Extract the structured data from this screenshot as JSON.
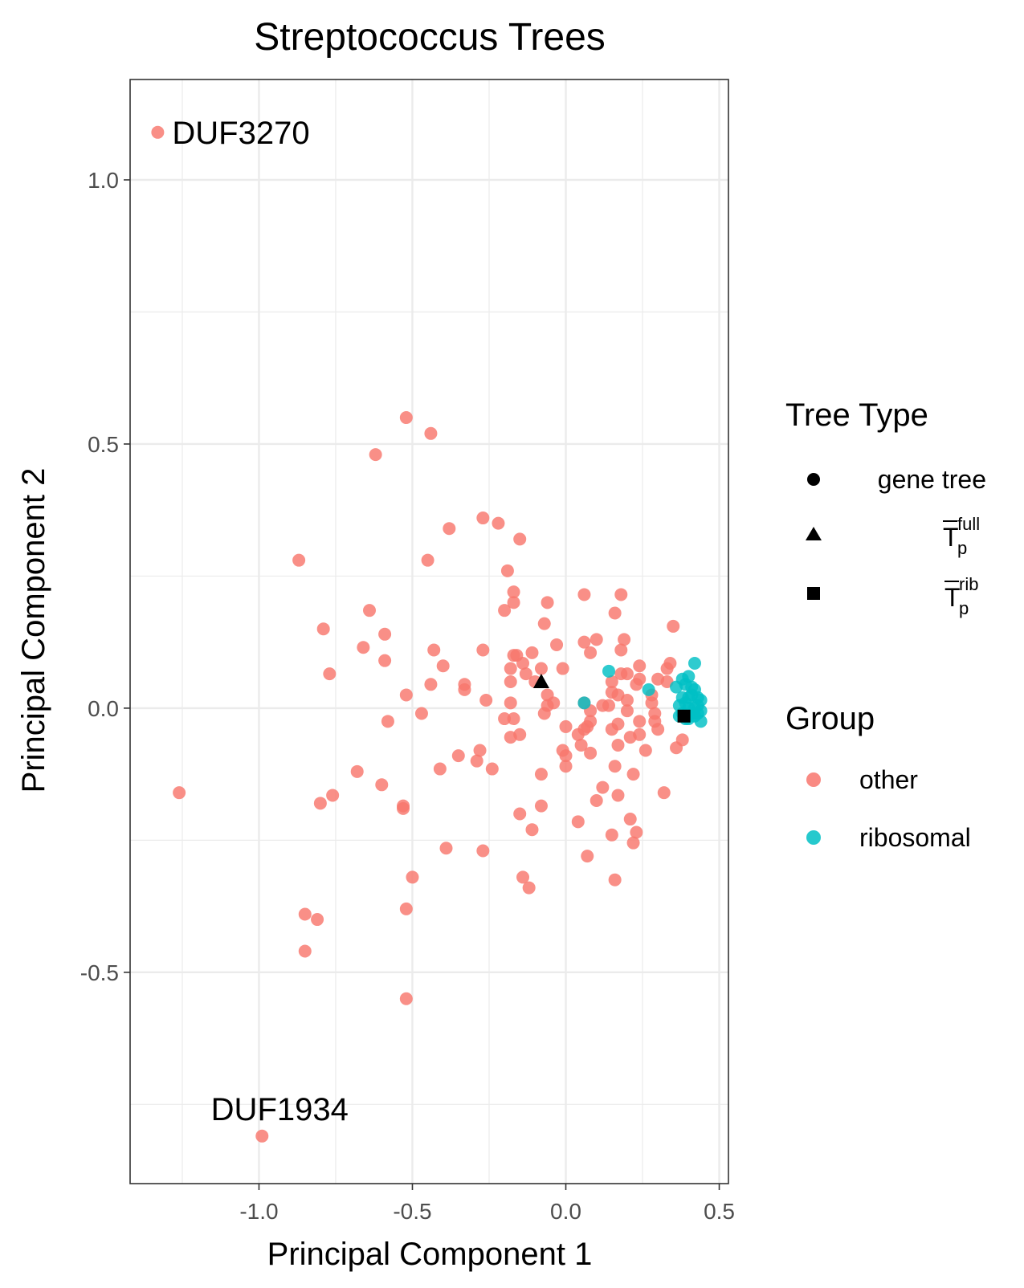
{
  "chart_data": {
    "type": "scatter",
    "title": "Streptococcus Trees",
    "xlabel": "Principal Component 1",
    "ylabel": "Principal Component 2",
    "xlim": [
      -1.42,
      0.53
    ],
    "ylim": [
      -0.9,
      1.19
    ],
    "x_ticks": [
      -1.0,
      -0.5,
      0.0,
      0.5
    ],
    "x_tick_labels": [
      "-1.0",
      "-0.5",
      "0.0",
      "0.5"
    ],
    "y_ticks": [
      -0.5,
      0.0,
      0.5,
      1.0
    ],
    "y_tick_labels": [
      "-0.5",
      "0.0",
      "0.5",
      "1.0"
    ],
    "grid": true,
    "legend_position": "right",
    "colors": {
      "other": "#F8766D",
      "ribosomal": "#00BFC4",
      "marker": "#000000"
    },
    "legend": {
      "tree_type": {
        "title": "Tree Type",
        "items": [
          {
            "shape": "circle",
            "label": "gene tree"
          },
          {
            "shape": "triangle",
            "label_main": "T",
            "label_sup": "full",
            "label_sub": "p"
          },
          {
            "shape": "square",
            "label_main": "T",
            "label_sup": "rib",
            "label_sub": "p"
          }
        ]
      },
      "group": {
        "title": "Group",
        "items": [
          {
            "label": "other",
            "color": "#F8766D"
          },
          {
            "label": "ribosomal",
            "color": "#00BFC4"
          }
        ]
      }
    },
    "annotations": [
      {
        "text": "DUF3270",
        "x": -1.33,
        "y": 1.09
      },
      {
        "text": "DUF1934",
        "x": -0.99,
        "y": -0.81
      }
    ],
    "special_points": [
      {
        "label": "T̄p full",
        "shape": "triangle",
        "x": -0.08,
        "y": 0.05
      },
      {
        "label": "T̄p rib",
        "shape": "square",
        "x": 0.385,
        "y": -0.015
      }
    ],
    "series": [
      {
        "name": "other",
        "points": [
          [
            -1.33,
            1.09
          ],
          [
            -0.99,
            -0.81
          ],
          [
            -1.26,
            -0.16
          ],
          [
            -0.52,
            0.55
          ],
          [
            -0.44,
            0.52
          ],
          [
            -0.62,
            0.48
          ],
          [
            -0.27,
            0.36
          ],
          [
            -0.22,
            0.35
          ],
          [
            -0.38,
            0.34
          ],
          [
            -0.15,
            0.32
          ],
          [
            -0.87,
            0.28
          ],
          [
            -0.45,
            0.28
          ],
          [
            -0.19,
            0.26
          ],
          [
            -0.17,
            0.22
          ],
          [
            -0.17,
            0.2
          ],
          [
            -0.06,
            0.2
          ],
          [
            0.06,
            0.215
          ],
          [
            0.18,
            0.215
          ],
          [
            -0.64,
            0.185
          ],
          [
            -0.2,
            0.185
          ],
          [
            -0.07,
            0.16
          ],
          [
            0.16,
            0.18
          ],
          [
            -0.79,
            0.15
          ],
          [
            -0.59,
            0.14
          ],
          [
            0.35,
            0.155
          ],
          [
            -0.66,
            0.115
          ],
          [
            -0.43,
            0.11
          ],
          [
            -0.27,
            0.11
          ],
          [
            -0.03,
            0.12
          ],
          [
            0.06,
            0.125
          ],
          [
            0.1,
            0.13
          ],
          [
            0.19,
            0.13
          ],
          [
            -0.17,
            0.1
          ],
          [
            -0.11,
            0.105
          ],
          [
            -0.16,
            0.1
          ],
          [
            0.08,
            0.105
          ],
          [
            0.18,
            0.11
          ],
          [
            -0.59,
            0.09
          ],
          [
            -0.4,
            0.08
          ],
          [
            -0.18,
            0.075
          ],
          [
            -0.14,
            0.085
          ],
          [
            -0.08,
            0.075
          ],
          [
            -0.01,
            0.075
          ],
          [
            0.2,
            0.065
          ],
          [
            0.18,
            0.065
          ],
          [
            -0.77,
            0.065
          ],
          [
            -0.13,
            0.065
          ],
          [
            0.24,
            0.08
          ],
          [
            0.33,
            0.075
          ],
          [
            0.34,
            0.085
          ],
          [
            -0.44,
            0.045
          ],
          [
            -0.33,
            0.045
          ],
          [
            -0.18,
            0.05
          ],
          [
            -0.1,
            0.05
          ],
          [
            0.15,
            0.05
          ],
          [
            0.23,
            0.045
          ],
          [
            0.24,
            0.055
          ],
          [
            0.3,
            0.055
          ],
          [
            0.33,
            0.05
          ],
          [
            -0.52,
            0.025
          ],
          [
            -0.33,
            0.035
          ],
          [
            -0.06,
            0.025
          ],
          [
            0.15,
            0.03
          ],
          [
            0.17,
            0.025
          ],
          [
            0.2,
            0.015
          ],
          [
            0.28,
            0.025
          ],
          [
            -0.26,
            0.015
          ],
          [
            -0.18,
            0.01
          ],
          [
            -0.06,
            0.005
          ],
          [
            -0.04,
            0.01
          ],
          [
            0.06,
            0.01
          ],
          [
            0.12,
            0.005
          ],
          [
            0.14,
            0.005
          ],
          [
            0.28,
            0.01
          ],
          [
            -0.47,
            -0.01
          ],
          [
            -0.07,
            -0.01
          ],
          [
            0.08,
            -0.005
          ],
          [
            0.2,
            -0.005
          ],
          [
            0.29,
            -0.01
          ],
          [
            -0.58,
            -0.025
          ],
          [
            -0.2,
            -0.02
          ],
          [
            -0.17,
            -0.02
          ],
          [
            0.0,
            -0.035
          ],
          [
            0.08,
            -0.025
          ],
          [
            0.17,
            -0.03
          ],
          [
            0.24,
            -0.025
          ],
          [
            0.29,
            -0.025
          ],
          [
            -0.18,
            -0.055
          ],
          [
            -0.15,
            -0.05
          ],
          [
            0.04,
            -0.05
          ],
          [
            0.06,
            -0.04
          ],
          [
            0.07,
            -0.035
          ],
          [
            0.15,
            -0.04
          ],
          [
            0.21,
            -0.055
          ],
          [
            0.24,
            -0.05
          ],
          [
            0.3,
            -0.04
          ],
          [
            -0.28,
            -0.08
          ],
          [
            -0.01,
            -0.08
          ],
          [
            0.05,
            -0.07
          ],
          [
            0.17,
            -0.07
          ],
          [
            0.26,
            -0.08
          ],
          [
            0.36,
            -0.075
          ],
          [
            0.38,
            -0.06
          ],
          [
            -0.35,
            -0.09
          ],
          [
            -0.29,
            -0.1
          ],
          [
            0.0,
            -0.09
          ],
          [
            0.08,
            -0.085
          ],
          [
            -0.41,
            -0.115
          ],
          [
            -0.24,
            -0.115
          ],
          [
            0.0,
            -0.11
          ],
          [
            0.16,
            -0.11
          ],
          [
            -0.68,
            -0.12
          ],
          [
            -0.08,
            -0.125
          ],
          [
            0.12,
            -0.15
          ],
          [
            -0.6,
            -0.145
          ],
          [
            0.22,
            -0.125
          ],
          [
            -0.76,
            -0.165
          ],
          [
            -0.8,
            -0.18
          ],
          [
            0.17,
            -0.165
          ],
          [
            0.32,
            -0.16
          ],
          [
            -0.53,
            -0.185
          ],
          [
            -0.53,
            -0.19
          ],
          [
            -0.08,
            -0.185
          ],
          [
            0.1,
            -0.175
          ],
          [
            -0.15,
            -0.2
          ],
          [
            0.04,
            -0.215
          ],
          [
            0.21,
            -0.21
          ],
          [
            -0.11,
            -0.23
          ],
          [
            0.23,
            -0.235
          ],
          [
            0.15,
            -0.24
          ],
          [
            -0.39,
            -0.265
          ],
          [
            -0.27,
            -0.27
          ],
          [
            0.22,
            -0.255
          ],
          [
            0.07,
            -0.28
          ],
          [
            -0.5,
            -0.32
          ],
          [
            -0.14,
            -0.32
          ],
          [
            -0.12,
            -0.34
          ],
          [
            0.16,
            -0.325
          ],
          [
            -0.52,
            -0.38
          ],
          [
            -0.85,
            -0.39
          ],
          [
            -0.81,
            -0.4
          ],
          [
            -0.85,
            -0.46
          ],
          [
            -0.52,
            -0.55
          ]
        ]
      },
      {
        "name": "ribosomal",
        "points": [
          [
            0.42,
            0.085
          ],
          [
            0.14,
            0.07
          ],
          [
            0.06,
            0.01
          ],
          [
            0.27,
            0.035
          ],
          [
            0.36,
            0.04
          ],
          [
            0.38,
            0.055
          ],
          [
            0.39,
            0.045
          ],
          [
            0.4,
            0.06
          ],
          [
            0.41,
            0.04
          ],
          [
            0.42,
            0.035
          ],
          [
            0.43,
            0.02
          ],
          [
            0.44,
            0.015
          ],
          [
            0.41,
            0.025
          ],
          [
            0.4,
            0.02
          ],
          [
            0.38,
            0.02
          ],
          [
            0.39,
            0.01
          ],
          [
            0.37,
            0.005
          ],
          [
            0.43,
            0.005
          ],
          [
            0.42,
            0.0
          ],
          [
            0.4,
            0.0
          ],
          [
            0.44,
            -0.005
          ],
          [
            0.41,
            -0.01
          ],
          [
            0.38,
            -0.01
          ],
          [
            0.39,
            -0.02
          ],
          [
            0.42,
            -0.015
          ],
          [
            0.44,
            -0.025
          ],
          [
            0.4,
            -0.02
          ],
          [
            0.37,
            -0.015
          ],
          [
            0.43,
            -0.01
          ]
        ]
      }
    ]
  }
}
